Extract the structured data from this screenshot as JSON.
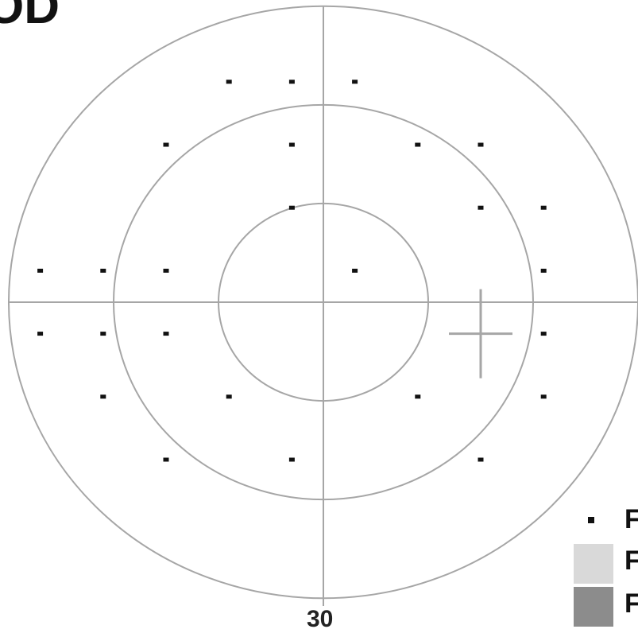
{
  "eye_label": "OD",
  "scale_label": "30",
  "colors": {
    "grid": "#a6a6a6",
    "point": "#111111",
    "blind_spot": "#a6a6a6",
    "legend_light": "#d9d9d9",
    "legend_dark": "#8c8c8c"
  },
  "field": {
    "rings_degrees": [
      10,
      20,
      30
    ],
    "test_points": [
      {
        "x": -9,
        "y": 21
      },
      {
        "x": -3,
        "y": 21
      },
      {
        "x": 3,
        "y": 21
      },
      {
        "x": -15,
        "y": 15
      },
      {
        "x": -3,
        "y": 15
      },
      {
        "x": 9,
        "y": 15
      },
      {
        "x": 15,
        "y": 15
      },
      {
        "x": -3,
        "y": 9
      },
      {
        "x": 15,
        "y": 9
      },
      {
        "x": 21,
        "y": 9
      },
      {
        "x": -27,
        "y": 3
      },
      {
        "x": -21,
        "y": 3
      },
      {
        "x": -15,
        "y": 3
      },
      {
        "x": 3,
        "y": 3
      },
      {
        "x": 21,
        "y": 3
      },
      {
        "x": -27,
        "y": -3
      },
      {
        "x": -21,
        "y": -3
      },
      {
        "x": -15,
        "y": -3
      },
      {
        "x": 21,
        "y": -3
      },
      {
        "x": -21,
        "y": -9
      },
      {
        "x": -9,
        "y": -9
      },
      {
        "x": 9,
        "y": -9
      },
      {
        "x": 21,
        "y": -9
      },
      {
        "x": -15,
        "y": -15
      },
      {
        "x": -3,
        "y": -15
      },
      {
        "x": 15,
        "y": -15
      }
    ],
    "blind_spot": {
      "x": 15,
      "y": -3
    }
  },
  "legend": [
    {
      "swatch": "dot",
      "text": "F"
    },
    {
      "swatch": "light",
      "text": "F"
    },
    {
      "swatch": "dark",
      "text": "F"
    }
  ]
}
